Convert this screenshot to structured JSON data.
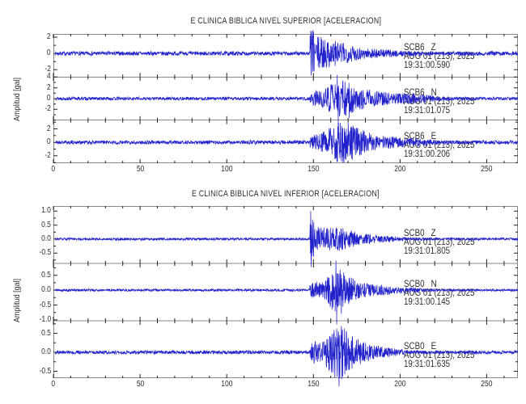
{
  "chart_data": {
    "type": "line",
    "kind": "seismogram-accelerogram-multitrace",
    "ylabel": "Amplitud [gal]",
    "xlim": [
      0,
      268
    ],
    "x_ticks": [
      {
        "v": 0,
        "label": "0"
      },
      {
        "v": 50,
        "label": "50"
      },
      {
        "v": 100,
        "label": "100"
      },
      {
        "v": 150,
        "label": "150"
      },
      {
        "v": 200,
        "label": "200"
      },
      {
        "v": 250,
        "label": "250"
      }
    ],
    "x_minor_step": 10,
    "trace_color": "#2222cc",
    "frame_color": "#8a8a8a",
    "tick_color": "#222222",
    "text_color": "#2e2e2e",
    "grid": false,
    "legend_position": "none",
    "panels": [
      {
        "title": "E CLINICA BIBLICA NIVEL SUPERIOR [ACELERACION]",
        "traces": [
          {
            "station": "SCB6",
            "component": "Z",
            "date": "AUG 01 (213), 2025",
            "start_time": "19:31:00.590",
            "ylim": [
              -2.9,
              2.4
            ],
            "yticks": [
              {
                "v": 2,
                "label": "2"
              },
              {
                "v": 0,
                "label": "0"
              },
              {
                "v": -2,
                "label": "-2"
              }
            ],
            "onset": 148,
            "noise_amp": 0.25,
            "peak_amp": 2.8,
            "seed": 7,
            "bumps": [
              [
                149,
                1.2,
                2.0
              ],
              [
                152,
                3,
                1.2
              ],
              [
                158,
                5,
                0.9
              ],
              [
                166,
                7,
                0.7
              ],
              [
                180,
                14,
                0.35
              ]
            ],
            "spikes": [
              [
                148.5,
                2.8
              ],
              [
                148.8,
                -2.7
              ],
              [
                149.3,
                2.2
              ]
            ]
          },
          {
            "station": "SCB6",
            "component": "N",
            "date": "AUG 01 (213), 2025",
            "start_time": "19:31:01.075",
            "ylim": [
              -4.0,
              4.0
            ],
            "yticks": [
              {
                "v": 4,
                "label": "4"
              },
              {
                "v": 2,
                "label": "2"
              },
              {
                "v": 0,
                "label": "0"
              },
              {
                "v": -2,
                "label": "-2"
              }
            ],
            "onset": 148,
            "noise_amp": 0.3,
            "peak_amp": 4.8,
            "seed": 13,
            "bumps": [
              [
                150,
                2,
                0.8
              ],
              [
                156,
                4,
                1.2
              ],
              [
                163,
                3.5,
                2.2
              ],
              [
                169,
                4,
                1.9
              ],
              [
                176,
                5,
                1.2
              ],
              [
                186,
                7,
                0.8
              ],
              [
                200,
                10,
                0.45
              ],
              [
                210,
                8,
                0.35
              ]
            ],
            "spikes": [
              [
                163.8,
                4.4
              ],
              [
                164.3,
                -4.8
              ],
              [
                170.6,
                -3.6
              ]
            ]
          },
          {
            "station": "SCB6",
            "component": "E",
            "date": "AUG 01 (213), 2025",
            "start_time": "19:31:00.206",
            "ylim": [
              -3.1,
              3.3
            ],
            "yticks": [
              {
                "v": 2,
                "label": "2"
              },
              {
                "v": 0,
                "label": "0"
              },
              {
                "v": -2,
                "label": "-2"
              }
            ],
            "onset": 148,
            "noise_amp": 0.28,
            "peak_amp": 2.9,
            "seed": 21,
            "bumps": [
              [
                150,
                2,
                0.7
              ],
              [
                157,
                4,
                1.1
              ],
              [
                164,
                4,
                1.9
              ],
              [
                170,
                4,
                1.7
              ],
              [
                177,
                5,
                1.2
              ],
              [
                188,
                8,
                0.6
              ],
              [
                205,
                10,
                0.35
              ]
            ],
            "spikes": [
              [
                165.5,
                2.9
              ],
              [
                166.2,
                -2.8
              ],
              [
                172,
                -2.4
              ]
            ]
          }
        ]
      },
      {
        "title": "E CLINICA BIBLICA NIVEL INFERIOR [ACELERACION]",
        "traces": [
          {
            "station": "SCB0",
            "component": "Z",
            "date": "AUG 01 (213), 2025",
            "start_time": "19:31:01.805",
            "ylim": [
              -0.87,
              1.18
            ],
            "yticks": [
              {
                "v": 1.0,
                "label": "1.0"
              },
              {
                "v": 0.5,
                "label": "0.5"
              },
              {
                "v": 0.0,
                "label": "0.0"
              },
              {
                "v": -0.5,
                "label": "-0.5"
              }
            ],
            "onset": 148,
            "noise_amp": 0.045,
            "peak_amp": 1.0,
            "seed": 31,
            "bumps": [
              [
                148.8,
                1,
                0.55
              ],
              [
                151,
                2.5,
                0.3
              ],
              [
                156,
                4,
                0.22
              ],
              [
                163,
                5,
                0.25
              ],
              [
                171,
                7,
                0.16
              ],
              [
                185,
                12,
                0.08
              ]
            ],
            "spikes": [
              [
                148.5,
                1.0
              ],
              [
                148.8,
                -1.0
              ],
              [
                150.2,
                0.6
              ]
            ]
          },
          {
            "station": "SCB0",
            "component": "N",
            "date": "AUG 01 (213), 2025",
            "start_time": "19:31:00.145",
            "ylim": [
              -1.03,
              0.9
            ],
            "yticks": [
              {
                "v": 0.5,
                "label": "0.5"
              },
              {
                "v": 0.0,
                "label": "0.0"
              },
              {
                "v": -0.5,
                "label": "-0.5"
              },
              {
                "v": -1.0,
                "label": "-1.0"
              }
            ],
            "onset": 148,
            "noise_amp": 0.04,
            "peak_amp": 1.15,
            "seed": 41,
            "bumps": [
              [
                150,
                2,
                0.18
              ],
              [
                156,
                4,
                0.22
              ],
              [
                162,
                3,
                0.45
              ],
              [
                167,
                4,
                0.38
              ],
              [
                174,
                5,
                0.22
              ],
              [
                185,
                8,
                0.12
              ],
              [
                200,
                10,
                0.06
              ]
            ],
            "spikes": [
              [
                163,
                1.0
              ],
              [
                163.4,
                -1.15
              ],
              [
                166.2,
                -0.8
              ]
            ]
          },
          {
            "station": "SCB0",
            "component": "E",
            "date": "AUG 01 (213), 2025",
            "start_time": "19:31:01.635",
            "ylim": [
              -0.68,
              0.83
            ],
            "yticks": [
              {
                "v": 0.5,
                "label": "0.5"
              },
              {
                "v": 0.0,
                "label": "0.0"
              },
              {
                "v": -0.5,
                "label": "-0.5"
              }
            ],
            "onset": 148,
            "noise_amp": 0.045,
            "peak_amp": 0.9,
            "seed": 51,
            "bumps": [
              [
                150,
                2,
                0.2
              ],
              [
                157,
                4,
                0.24
              ],
              [
                163,
                3.5,
                0.42
              ],
              [
                168,
                4,
                0.36
              ],
              [
                176,
                5,
                0.22
              ],
              [
                188,
                8,
                0.11
              ]
            ],
            "spikes": [
              [
                163.5,
                0.62
              ],
              [
                164.8,
                -0.9
              ],
              [
                166.5,
                -0.7
              ]
            ]
          }
        ]
      }
    ]
  }
}
